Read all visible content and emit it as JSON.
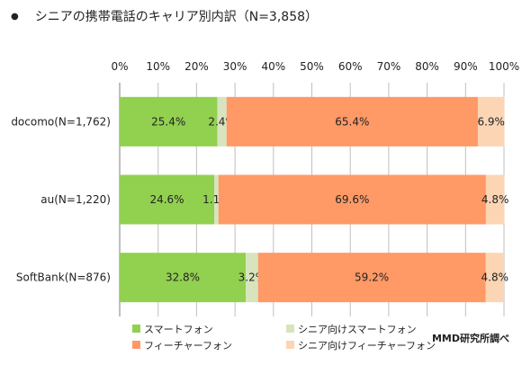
{
  "header": {
    "bullet": "●",
    "title": "シニアの携帯電話のキャリア別内訳（N=3,858）"
  },
  "source": "MMD研究所調べ",
  "colors": {
    "smartphone": "#92D050",
    "senior_smartphone": "#D7E4BD",
    "feature_phone": "#FF9966",
    "senior_feature_phone": "#FCD5B5",
    "grid": "#BFBFBF",
    "axis": "#7F7F7F"
  },
  "chart_data": {
    "type": "bar",
    "orientation": "horizontal",
    "stacked": true,
    "title": "",
    "xlabel": "",
    "ylabel": "",
    "xlim": [
      0,
      100
    ],
    "x_ticks": [
      "0%",
      "10%",
      "20%",
      "30%",
      "40%",
      "50%",
      "60%",
      "70%",
      "80%",
      "90%",
      "100%"
    ],
    "x_ticks_position": "top",
    "grid": true,
    "legend_position": "bottom",
    "categories": [
      "docomo(N=1,762)",
      "au(N=1,220)",
      "SoftBank(N=876)"
    ],
    "series": [
      {
        "name": "スマートフォン",
        "color_key": "smartphone",
        "values": [
          25.4,
          24.6,
          32.8
        ],
        "labels": [
          "25.4%",
          "24.6%",
          "32.8%"
        ]
      },
      {
        "name": "シニア向けスマートフォン",
        "color_key": "senior_smartphone",
        "values": [
          2.4,
          1.1,
          3.2
        ],
        "labels": [
          "2.4%",
          "1.1%",
          "3.2%"
        ]
      },
      {
        "name": "フィーチャーフォン",
        "color_key": "feature_phone",
        "values": [
          65.4,
          69.6,
          59.2
        ],
        "labels": [
          "65.4%",
          "69.6%",
          "59.2%"
        ]
      },
      {
        "name": "シニア向けフィーチャーフォン",
        "color_key": "senior_feature_phone",
        "values": [
          6.9,
          4.8,
          4.8
        ],
        "labels": [
          "6.9%",
          "4.8%",
          "4.8%"
        ]
      }
    ]
  }
}
